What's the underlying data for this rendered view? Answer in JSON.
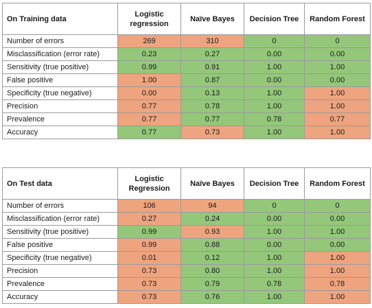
{
  "colors": {
    "good": "#94c77a",
    "bad": "#eea47f"
  },
  "training": {
    "title": "On Training data",
    "columns": [
      "Logistic regression",
      "Naïve Bayes",
      "Decision Tree",
      "Random Forest"
    ],
    "rows": [
      {
        "label": "Number of errors",
        "values": [
          "269",
          "310",
          "0",
          "0"
        ],
        "status": [
          "bad",
          "bad",
          "good",
          "good"
        ]
      },
      {
        "label": "Misclassification (error rate)",
        "values": [
          "0.23",
          "0.27",
          "0.00",
          "0.00"
        ],
        "status": [
          "good",
          "good",
          "good",
          "good"
        ]
      },
      {
        "label": "Sensitivity (true positive)",
        "values": [
          "0.99",
          "0.91",
          "1.00",
          "1.00"
        ],
        "status": [
          "good",
          "good",
          "good",
          "good"
        ]
      },
      {
        "label": "False positive",
        "values": [
          "1.00",
          "0.87",
          "0.00",
          "0.00"
        ],
        "status": [
          "bad",
          "good",
          "good",
          "good"
        ]
      },
      {
        "label": "Specificity (true negative)",
        "values": [
          "0.00",
          "0.13",
          "1.00",
          "1.00"
        ],
        "status": [
          "bad",
          "good",
          "good",
          "bad"
        ]
      },
      {
        "label": "Precision",
        "values": [
          "0.77",
          "0.78",
          "1.00",
          "1.00"
        ],
        "status": [
          "bad",
          "good",
          "good",
          "bad"
        ]
      },
      {
        "label": "Prevalence",
        "values": [
          "0.77",
          "0.77",
          "0.78",
          "0.77"
        ],
        "status": [
          "bad",
          "good",
          "good",
          "bad"
        ]
      },
      {
        "label": "Accuracy",
        "values": [
          "0.77",
          "0.73",
          "1.00",
          "1.00"
        ],
        "status": [
          "good",
          "bad",
          "good",
          "bad"
        ]
      }
    ]
  },
  "test": {
    "title": "On Test data",
    "columns": [
      "Logistic Regression",
      "Naïve Bayes",
      "Decision Tree",
      "Random Forest"
    ],
    "rows": [
      {
        "label": "Number of errors",
        "values": [
          "106",
          "94",
          "0",
          "0"
        ],
        "status": [
          "bad",
          "bad",
          "good",
          "good"
        ]
      },
      {
        "label": "Misclassification (error rate)",
        "values": [
          "0.27",
          "0.24",
          "0.00",
          "0.00"
        ],
        "status": [
          "bad",
          "good",
          "good",
          "good"
        ]
      },
      {
        "label": "Sensitivity (true positive)",
        "values": [
          "0.99",
          "0.93",
          "1.00",
          "1.00"
        ],
        "status": [
          "good",
          "bad",
          "good",
          "good"
        ]
      },
      {
        "label": "False positive",
        "values": [
          "0.99",
          "0.88",
          "0.00",
          "0.00"
        ],
        "status": [
          "bad",
          "good",
          "good",
          "good"
        ]
      },
      {
        "label": "Specificity (true negative)",
        "values": [
          "0.01",
          "0.12",
          "1.00",
          "1.00"
        ],
        "status": [
          "bad",
          "good",
          "good",
          "bad"
        ]
      },
      {
        "label": "Precision",
        "values": [
          "0.73",
          "0.80",
          "1.00",
          "1.00"
        ],
        "status": [
          "bad",
          "good",
          "good",
          "bad"
        ]
      },
      {
        "label": "Prevalence",
        "values": [
          "0.73",
          "0.79",
          "0.78",
          "0.78"
        ],
        "status": [
          "bad",
          "good",
          "good",
          "bad"
        ]
      },
      {
        "label": "Accuracy",
        "values": [
          "0.73",
          "0.76",
          "1.00",
          "1.00"
        ],
        "status": [
          "bad",
          "good",
          "good",
          "bad"
        ]
      }
    ]
  }
}
